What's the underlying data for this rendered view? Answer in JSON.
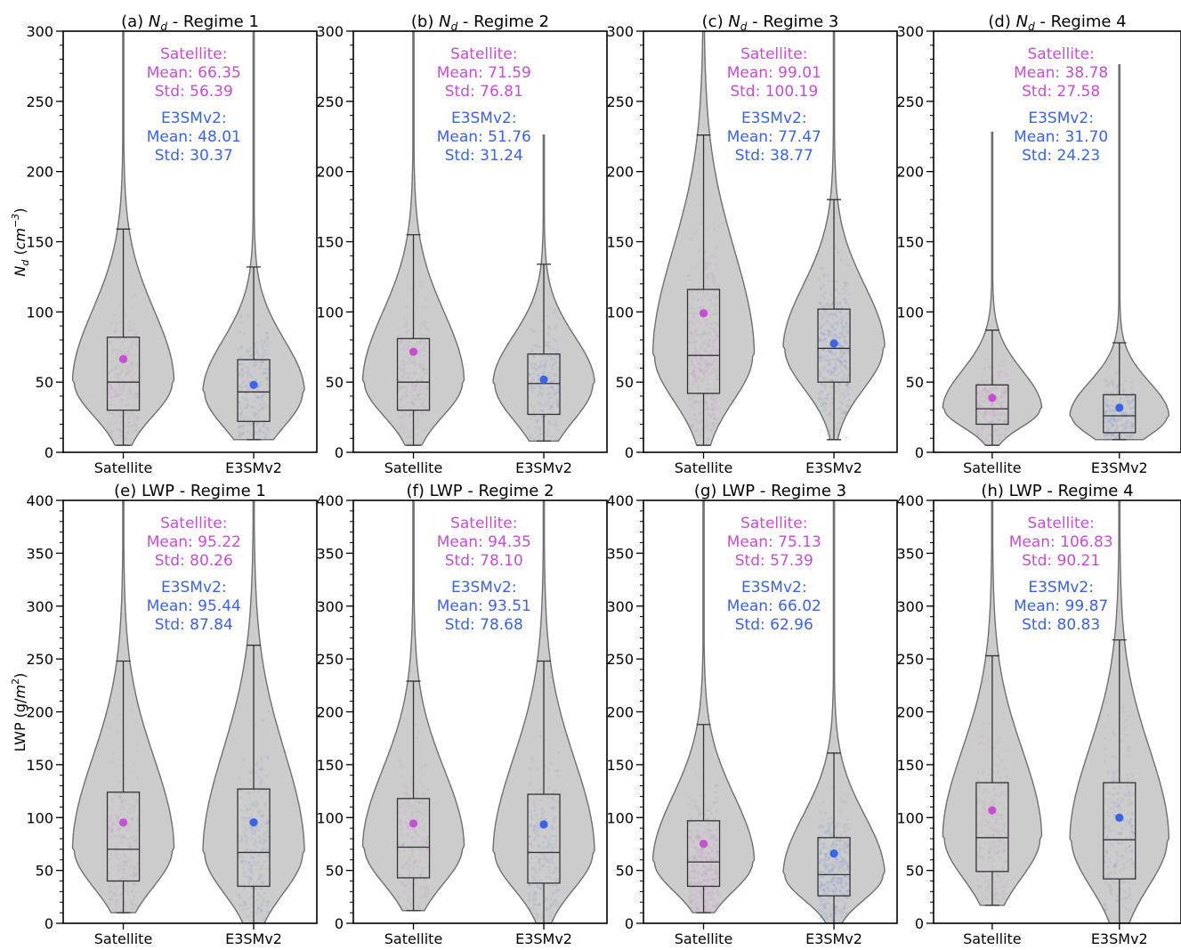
{
  "figure": {
    "row1_ylabel": "N_d (cm^-3)",
    "row2_ylabel": "LWP (g/m^2)"
  },
  "chart_data": [
    {
      "type": "violin",
      "panel": "(a)",
      "title_prefix": "(a) ",
      "title_var": "N_d",
      "title_regime": " - Regime 1",
      "ylim": [
        0,
        300
      ],
      "yticks": [
        0,
        50,
        100,
        150,
        200,
        250,
        300
      ],
      "categories": [
        "Satellite",
        "E3SMv2"
      ],
      "series": [
        {
          "name": "Satellite",
          "color": "#c44fd1",
          "mean": 66.35,
          "std": 56.39,
          "q1": 30,
          "median": 50,
          "q3": 82,
          "whisker_low": 5,
          "whisker_high": 159,
          "min": 5,
          "max": 300
        },
        {
          "name": "E3SMv2",
          "color": "#3a63e6",
          "mean": 48.01,
          "std": 30.37,
          "q1": 22,
          "median": 43,
          "q3": 66,
          "whisker_low": 9,
          "whisker_high": 132,
          "min": 9,
          "max": 300
        }
      ],
      "annotations": {
        "sat_head": "Satellite:",
        "sat_mean": "Mean: 66.35",
        "sat_std": "Std: 56.39",
        "mod_head": "E3SMv2:",
        "mod_mean": "Mean: 48.01",
        "mod_std": "Std: 30.37"
      }
    },
    {
      "type": "violin",
      "panel": "(b)",
      "title_prefix": "(b) ",
      "title_var": "N_d",
      "title_regime": " - Regime 2",
      "ylim": [
        0,
        300
      ],
      "yticks": [
        0,
        50,
        100,
        150,
        200,
        250,
        300
      ],
      "categories": [
        "Satellite",
        "E3SMv2"
      ],
      "series": [
        {
          "name": "Satellite",
          "color": "#c44fd1",
          "mean": 71.59,
          "std": 76.81,
          "q1": 30,
          "median": 50,
          "q3": 81,
          "whisker_low": 5,
          "whisker_high": 155,
          "min": 5,
          "max": 300
        },
        {
          "name": "E3SMv2",
          "color": "#3a63e6",
          "mean": 51.76,
          "std": 31.24,
          "q1": 27,
          "median": 49,
          "q3": 70,
          "whisker_low": 8,
          "whisker_high": 134,
          "min": 8,
          "max": 226
        }
      ],
      "annotations": {
        "sat_head": "Satellite:",
        "sat_mean": "Mean: 71.59",
        "sat_std": "Std: 76.81",
        "mod_head": "E3SMv2:",
        "mod_mean": "Mean: 51.76",
        "mod_std": "Std: 31.24"
      }
    },
    {
      "type": "violin",
      "panel": "(c)",
      "title_prefix": "(c) ",
      "title_var": "N_d",
      "title_regime": " - Regime 3",
      "ylim": [
        0,
        300
      ],
      "yticks": [
        0,
        50,
        100,
        150,
        200,
        250,
        300
      ],
      "categories": [
        "Satellite",
        "E3SMv2"
      ],
      "series": [
        {
          "name": "Satellite",
          "color": "#c44fd1",
          "mean": 99.01,
          "std": 100.19,
          "q1": 42,
          "median": 69,
          "q3": 116,
          "whisker_low": 5,
          "whisker_high": 226,
          "min": 5,
          "max": 300
        },
        {
          "name": "E3SMv2",
          "color": "#3a63e6",
          "mean": 77.47,
          "std": 38.77,
          "q1": 50,
          "median": 74,
          "q3": 102,
          "whisker_low": 9,
          "whisker_high": 180,
          "min": 9,
          "max": 300
        }
      ],
      "annotations": {
        "sat_head": "Satellite:",
        "sat_mean": "Mean: 99.01",
        "sat_std": "Std: 100.19",
        "mod_head": "E3SMv2:",
        "mod_mean": "Mean: 77.47",
        "mod_std": "Std: 38.77"
      }
    },
    {
      "type": "violin",
      "panel": "(d)",
      "title_prefix": "(d) ",
      "title_var": "N_d",
      "title_regime": " - Regime 4",
      "ylim": [
        0,
        300
      ],
      "yticks": [
        0,
        50,
        100,
        150,
        200,
        250,
        300
      ],
      "categories": [
        "Satellite",
        "E3SMv2"
      ],
      "series": [
        {
          "name": "Satellite",
          "color": "#c44fd1",
          "mean": 38.78,
          "std": 27.58,
          "q1": 20,
          "median": 31,
          "q3": 48,
          "whisker_low": 5,
          "whisker_high": 87,
          "min": 5,
          "max": 228
        },
        {
          "name": "E3SMv2",
          "color": "#3a63e6",
          "mean": 31.7,
          "std": 24.23,
          "q1": 14,
          "median": 26,
          "q3": 41,
          "whisker_low": 9,
          "whisker_high": 78,
          "min": 9,
          "max": 276
        }
      ],
      "annotations": {
        "sat_head": "Satellite:",
        "sat_mean": "Mean: 38.78",
        "sat_std": "Std: 27.58",
        "mod_head": "E3SMv2:",
        "mod_mean": "Mean: 31.70",
        "mod_std": "Std: 24.23"
      }
    },
    {
      "type": "violin",
      "panel": "(e)",
      "title_prefix": "(e) ",
      "title_var": "LWP",
      "title_regime": " - Regime 1",
      "ylim": [
        0,
        400
      ],
      "yticks": [
        0,
        50,
        100,
        150,
        200,
        250,
        300,
        350,
        400
      ],
      "categories": [
        "Satellite",
        "E3SMv2"
      ],
      "series": [
        {
          "name": "Satellite",
          "color": "#c44fd1",
          "mean": 95.22,
          "std": 80.26,
          "q1": 40,
          "median": 70,
          "q3": 124,
          "whisker_low": 10,
          "whisker_high": 248,
          "min": 10,
          "max": 400
        },
        {
          "name": "E3SMv2",
          "color": "#3a63e6",
          "mean": 95.44,
          "std": 87.84,
          "q1": 35,
          "median": 67,
          "q3": 127,
          "whisker_low": 0,
          "whisker_high": 263,
          "min": 0,
          "max": 400
        }
      ],
      "annotations": {
        "sat_head": "Satellite:",
        "sat_mean": "Mean: 95.22",
        "sat_std": "Std: 80.26",
        "mod_head": "E3SMv2:",
        "mod_mean": "Mean: 95.44",
        "mod_std": "Std: 87.84"
      }
    },
    {
      "type": "violin",
      "panel": "(f)",
      "title_prefix": "(f) ",
      "title_var": "LWP",
      "title_regime": " - Regime 2",
      "ylim": [
        0,
        400
      ],
      "yticks": [
        0,
        50,
        100,
        150,
        200,
        250,
        300,
        350,
        400
      ],
      "categories": [
        "Satellite",
        "E3SMv2"
      ],
      "series": [
        {
          "name": "Satellite",
          "color": "#c44fd1",
          "mean": 94.35,
          "std": 78.1,
          "q1": 43,
          "median": 72,
          "q3": 118,
          "whisker_low": 12,
          "whisker_high": 229,
          "min": 12,
          "max": 400
        },
        {
          "name": "E3SMv2",
          "color": "#3a63e6",
          "mean": 93.51,
          "std": 78.68,
          "q1": 38,
          "median": 67,
          "q3": 122,
          "whisker_low": 0,
          "whisker_high": 248,
          "min": 0,
          "max": 400
        }
      ],
      "annotations": {
        "sat_head": "Satellite:",
        "sat_mean": "Mean: 94.35",
        "sat_std": "Std: 78.10",
        "mod_head": "E3SMv2:",
        "mod_mean": "Mean: 93.51",
        "mod_std": "Std: 78.68"
      }
    },
    {
      "type": "violin",
      "panel": "(g)",
      "title_prefix": "(g) ",
      "title_var": "LWP",
      "title_regime": " - Regime 3",
      "ylim": [
        0,
        400
      ],
      "yticks": [
        0,
        50,
        100,
        150,
        200,
        250,
        300,
        350,
        400
      ],
      "categories": [
        "Satellite",
        "E3SMv2"
      ],
      "series": [
        {
          "name": "Satellite",
          "color": "#c44fd1",
          "mean": 75.13,
          "std": 57.39,
          "q1": 35,
          "median": 58,
          "q3": 97,
          "whisker_low": 10,
          "whisker_high": 188,
          "min": 10,
          "max": 400
        },
        {
          "name": "E3SMv2",
          "color": "#3a63e6",
          "mean": 66.02,
          "std": 62.96,
          "q1": 26,
          "median": 46,
          "q3": 81,
          "whisker_low": 0,
          "whisker_high": 161,
          "min": 0,
          "max": 400
        }
      ],
      "annotations": {
        "sat_head": "Satellite:",
        "sat_mean": "Mean: 75.13",
        "sat_std": "Std: 57.39",
        "mod_head": "E3SMv2:",
        "mod_mean": "Mean: 66.02",
        "mod_std": "Std: 62.96"
      }
    },
    {
      "type": "violin",
      "panel": "(h)",
      "title_prefix": "(h) ",
      "title_var": "LWP",
      "title_regime": " - Regime 4",
      "ylim": [
        0,
        400
      ],
      "yticks": [
        0,
        50,
        100,
        150,
        200,
        250,
        300,
        350,
        400
      ],
      "categories": [
        "Satellite",
        "E3SMv2"
      ],
      "series": [
        {
          "name": "Satellite",
          "color": "#c44fd1",
          "mean": 106.83,
          "std": 90.21,
          "q1": 49,
          "median": 81,
          "q3": 133,
          "whisker_low": 17,
          "whisker_high": 253,
          "min": 17,
          "max": 400
        },
        {
          "name": "E3SMv2",
          "color": "#3a63e6",
          "mean": 99.87,
          "std": 80.83,
          "q1": 42,
          "median": 79,
          "q3": 133,
          "whisker_low": 0,
          "whisker_high": 268,
          "min": 0,
          "max": 400
        }
      ],
      "annotations": {
        "sat_head": "Satellite:",
        "sat_mean": "Mean: 106.83",
        "sat_std": "Std: 90.21",
        "mod_head": "E3SMv2:",
        "mod_mean": "Mean: 99.87",
        "mod_std": "Std: 80.83"
      }
    }
  ]
}
